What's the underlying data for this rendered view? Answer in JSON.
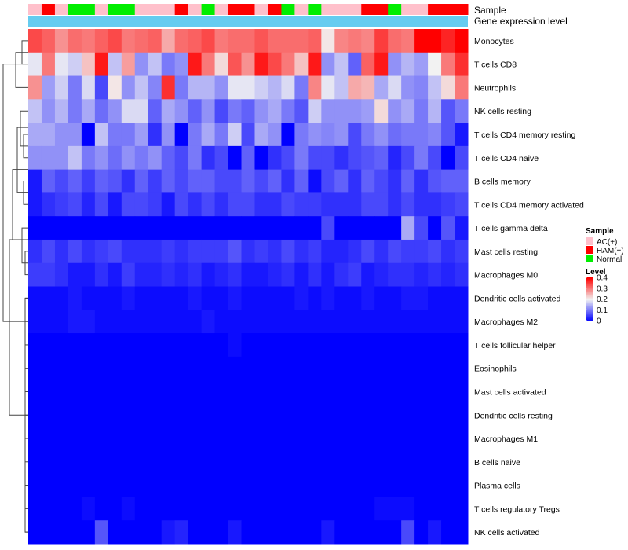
{
  "chart_data": {
    "type": "heatmap",
    "annotation_rows": [
      "Sample",
      "Gene expression level"
    ],
    "sample_groups": [
      "AC(+)",
      "HAM(+)",
      "AC(+)",
      "Normal",
      "Normal",
      "AC(+)",
      "Normal",
      "Normal",
      "AC(+)",
      "AC(+)",
      "AC(+)",
      "HAM(+)",
      "AC(+)",
      "Normal",
      "AC(+)",
      "HAM(+)",
      "HAM(+)",
      "AC(+)",
      "HAM(+)",
      "Normal",
      "AC(+)",
      "Normal",
      "AC(+)",
      "AC(+)",
      "AC(+)",
      "HAM(+)",
      "HAM(+)",
      "Normal",
      "AC(+)",
      "AC(+)",
      "HAM(+)",
      "HAM(+)",
      "HAM(+)"
    ],
    "row_labels": [
      "Monocytes",
      "T cells CD8",
      "Neutrophils",
      "NK cells resting",
      "T cells CD4 memory resting",
      "T cells CD4 naive",
      "B cells memory",
      "T cells CD4 memory activated",
      "T cells gamma delta",
      "Mast cells resting",
      "Macrophages M0",
      "Dendritic cells activated",
      "Macrophages M2",
      "T cells follicular helper",
      "Eosinophils",
      "Mast cells activated",
      "Dendritic cells resting",
      "Macrophages M1",
      "B cells naive",
      "Plasma cells",
      "T cells regulatory  Tregs",
      "NK cells activated"
    ],
    "values": [
      [
        0.34,
        0.32,
        0.28,
        0.31,
        0.3,
        0.32,
        0.34,
        0.3,
        0.31,
        0.32,
        0.26,
        0.31,
        0.32,
        0.34,
        0.3,
        0.31,
        0.31,
        0.33,
        0.31,
        0.31,
        0.31,
        0.32,
        0.21,
        0.29,
        0.3,
        0.29,
        0.35,
        0.31,
        0.3,
        0.4,
        0.4,
        0.37,
        0.4
      ],
      [
        0.19,
        0.3,
        0.19,
        0.17,
        0.24,
        0.38,
        0.16,
        0.27,
        0.12,
        0.16,
        0.1,
        0.12,
        0.38,
        0.3,
        0.22,
        0.33,
        0.28,
        0.38,
        0.34,
        0.3,
        0.24,
        0.38,
        0.12,
        0.16,
        0.08,
        0.32,
        0.38,
        0.12,
        0.15,
        0.13,
        0.2,
        0.3,
        0.36
      ],
      [
        0.28,
        0.13,
        0.17,
        0.1,
        0.18,
        0.06,
        0.21,
        0.12,
        0.16,
        0.11,
        0.36,
        0.1,
        0.15,
        0.15,
        0.12,
        0.19,
        0.19,
        0.17,
        0.15,
        0.18,
        0.1,
        0.29,
        0.19,
        0.16,
        0.26,
        0.25,
        0.14,
        0.18,
        0.12,
        0.11,
        0.16,
        0.22,
        0.3
      ],
      [
        0.16,
        0.12,
        0.15,
        0.1,
        0.14,
        0.09,
        0.12,
        0.18,
        0.18,
        0.08,
        0.14,
        0.12,
        0.08,
        0.12,
        0.06,
        0.1,
        0.08,
        0.12,
        0.14,
        0.1,
        0.07,
        0.17,
        0.12,
        0.12,
        0.12,
        0.13,
        0.22,
        0.12,
        0.14,
        0.1,
        0.15,
        0.07,
        0.1
      ],
      [
        0.14,
        0.14,
        0.12,
        0.12,
        0.0,
        0.16,
        0.1,
        0.1,
        0.13,
        0.04,
        0.12,
        0.0,
        0.1,
        0.14,
        0.1,
        0.17,
        0.06,
        0.14,
        0.12,
        0.0,
        0.1,
        0.12,
        0.11,
        0.12,
        0.06,
        0.1,
        0.12,
        0.09,
        0.1,
        0.1,
        0.11,
        0.07,
        0.02
      ],
      [
        0.12,
        0.12,
        0.12,
        0.16,
        0.1,
        0.12,
        0.09,
        0.12,
        0.1,
        0.12,
        0.08,
        0.06,
        0.1,
        0.04,
        0.06,
        0.0,
        0.08,
        0.0,
        0.04,
        0.06,
        0.1,
        0.06,
        0.06,
        0.04,
        0.06,
        0.07,
        0.08,
        0.03,
        0.06,
        0.1,
        0.06,
        0.0,
        0.06
      ],
      [
        0.02,
        0.08,
        0.06,
        0.08,
        0.05,
        0.08,
        0.07,
        0.04,
        0.08,
        0.05,
        0.08,
        0.06,
        0.08,
        0.08,
        0.06,
        0.06,
        0.08,
        0.06,
        0.08,
        0.04,
        0.08,
        0.01,
        0.06,
        0.08,
        0.04,
        0.08,
        0.06,
        0.04,
        0.08,
        0.04,
        0.07,
        0.08,
        0.08
      ],
      [
        0.02,
        0.04,
        0.05,
        0.06,
        0.03,
        0.06,
        0.02,
        0.06,
        0.06,
        0.05,
        0.02,
        0.06,
        0.04,
        0.06,
        0.04,
        0.06,
        0.06,
        0.04,
        0.04,
        0.06,
        0.05,
        0.05,
        0.04,
        0.04,
        0.04,
        0.06,
        0.06,
        0.04,
        0.06,
        0.04,
        0.04,
        0.05,
        0.06
      ],
      [
        0.0,
        0.0,
        0.0,
        0.0,
        0.0,
        0.0,
        0.0,
        0.0,
        0.0,
        0.0,
        0.0,
        0.0,
        0.0,
        0.0,
        0.0,
        0.0,
        0.0,
        0.0,
        0.0,
        0.0,
        0.0,
        0.0,
        0.06,
        0.0,
        0.0,
        0.0,
        0.0,
        0.0,
        0.14,
        0.06,
        0.0,
        0.07,
        0.02
      ],
      [
        0.04,
        0.06,
        0.04,
        0.06,
        0.04,
        0.05,
        0.06,
        0.04,
        0.04,
        0.04,
        0.05,
        0.04,
        0.05,
        0.05,
        0.05,
        0.07,
        0.04,
        0.05,
        0.04,
        0.06,
        0.04,
        0.05,
        0.03,
        0.03,
        0.04,
        0.06,
        0.04,
        0.06,
        0.05,
        0.05,
        0.06,
        0.04,
        0.05
      ],
      [
        0.05,
        0.05,
        0.04,
        0.02,
        0.02,
        0.04,
        0.02,
        0.05,
        0.03,
        0.03,
        0.04,
        0.03,
        0.04,
        0.02,
        0.03,
        0.04,
        0.02,
        0.02,
        0.03,
        0.04,
        0.02,
        0.04,
        0.02,
        0.04,
        0.05,
        0.02,
        0.03,
        0.04,
        0.04,
        0.03,
        0.04,
        0.03,
        0.04
      ],
      [
        0.01,
        0.01,
        0.01,
        0.02,
        0.01,
        0.01,
        0.01,
        0.02,
        0.01,
        0.01,
        0.01,
        0.01,
        0.02,
        0.01,
        0.01,
        0.02,
        0.01,
        0.01,
        0.01,
        0.01,
        0.02,
        0.01,
        0.02,
        0.01,
        0.01,
        0.02,
        0.01,
        0.01,
        0.02,
        0.02,
        0.01,
        0.01,
        0.01
      ],
      [
        0.01,
        0.01,
        0.01,
        0.02,
        0.02,
        0.01,
        0.01,
        0.01,
        0.01,
        0.01,
        0.01,
        0.01,
        0.01,
        0.02,
        0.01,
        0.01,
        0.01,
        0.01,
        0.01,
        0.01,
        0.01,
        0.01,
        0.01,
        0.01,
        0.01,
        0.01,
        0.01,
        0.01,
        0.01,
        0.01,
        0.01,
        0.01,
        0.01
      ],
      [
        0.0,
        0.0,
        0.0,
        0.0,
        0.0,
        0.0,
        0.0,
        0.0,
        0.0,
        0.0,
        0.0,
        0.0,
        0.0,
        0.0,
        0.0,
        0.01,
        0.0,
        0.0,
        0.0,
        0.0,
        0.0,
        0.0,
        0.0,
        0.0,
        0.0,
        0.0,
        0.0,
        0.0,
        0.0,
        0.0,
        0.0,
        0.0,
        0.0
      ],
      [
        0.0,
        0.0,
        0.0,
        0.0,
        0.0,
        0.0,
        0.0,
        0.0,
        0.0,
        0.0,
        0.0,
        0.0,
        0.0,
        0.0,
        0.0,
        0.0,
        0.0,
        0.0,
        0.0,
        0.0,
        0.0,
        0.0,
        0.0,
        0.0,
        0.0,
        0.0,
        0.0,
        0.0,
        0.0,
        0.0,
        0.0,
        0.0,
        0.0
      ],
      [
        0.0,
        0.0,
        0.0,
        0.0,
        0.0,
        0.0,
        0.0,
        0.0,
        0.0,
        0.0,
        0.0,
        0.0,
        0.0,
        0.0,
        0.0,
        0.0,
        0.0,
        0.0,
        0.0,
        0.0,
        0.0,
        0.0,
        0.0,
        0.0,
        0.0,
        0.0,
        0.0,
        0.0,
        0.0,
        0.0,
        0.0,
        0.0,
        0.0
      ],
      [
        0.0,
        0.0,
        0.0,
        0.0,
        0.0,
        0.0,
        0.0,
        0.0,
        0.0,
        0.0,
        0.0,
        0.0,
        0.0,
        0.0,
        0.0,
        0.0,
        0.0,
        0.0,
        0.0,
        0.0,
        0.0,
        0.0,
        0.0,
        0.0,
        0.0,
        0.0,
        0.0,
        0.0,
        0.0,
        0.0,
        0.0,
        0.0,
        0.0
      ],
      [
        0.0,
        0.0,
        0.0,
        0.0,
        0.0,
        0.0,
        0.0,
        0.0,
        0.0,
        0.0,
        0.0,
        0.0,
        0.0,
        0.0,
        0.0,
        0.0,
        0.0,
        0.0,
        0.0,
        0.0,
        0.0,
        0.0,
        0.0,
        0.0,
        0.0,
        0.0,
        0.0,
        0.0,
        0.0,
        0.0,
        0.0,
        0.0,
        0.0
      ],
      [
        0.0,
        0.0,
        0.0,
        0.0,
        0.0,
        0.0,
        0.0,
        0.0,
        0.0,
        0.0,
        0.0,
        0.0,
        0.0,
        0.0,
        0.0,
        0.0,
        0.0,
        0.0,
        0.0,
        0.0,
        0.0,
        0.0,
        0.0,
        0.0,
        0.0,
        0.0,
        0.0,
        0.0,
        0.0,
        0.0,
        0.0,
        0.0,
        0.0
      ],
      [
        0.0,
        0.0,
        0.0,
        0.0,
        0.0,
        0.0,
        0.0,
        0.0,
        0.0,
        0.0,
        0.0,
        0.0,
        0.0,
        0.0,
        0.0,
        0.0,
        0.0,
        0.0,
        0.0,
        0.0,
        0.0,
        0.0,
        0.0,
        0.0,
        0.0,
        0.0,
        0.0,
        0.0,
        0.0,
        0.0,
        0.0,
        0.0,
        0.0
      ],
      [
        0.0,
        0.0,
        0.0,
        0.0,
        0.01,
        0.0,
        0.0,
        0.01,
        0.0,
        0.0,
        0.0,
        0.0,
        0.0,
        0.0,
        0.0,
        0.0,
        0.0,
        0.0,
        0.0,
        0.0,
        0.0,
        0.0,
        0.0,
        0.0,
        0.0,
        0.0,
        0.01,
        0.01,
        0.01,
        0.0,
        0.0,
        0.0,
        0.0
      ],
      [
        0.0,
        0.0,
        0.0,
        0.0,
        0.0,
        0.07,
        0.0,
        0.0,
        0.0,
        0.0,
        0.02,
        0.03,
        0.0,
        0.0,
        0.0,
        0.02,
        0.0,
        0.0,
        0.0,
        0.0,
        0.0,
        0.0,
        0.02,
        0.0,
        0.0,
        0.0,
        0.0,
        0.0,
        0.06,
        0.0,
        0.02,
        0.0,
        0.0
      ]
    ],
    "color_scale": {
      "min": 0,
      "mid": 0.2,
      "max": 0.4,
      "low_color": "#0000ff",
      "mid_color": "#f2f2f2",
      "high_color": "#ff0000"
    },
    "legend": {
      "sample_title": "Sample",
      "sample_entries": [
        {
          "label": "AC(+)",
          "color": "#ffc0cb"
        },
        {
          "label": "HAM(+)",
          "color": "#ff0000"
        },
        {
          "label": "Normal",
          "color": "#00ee00"
        }
      ],
      "level_title": "Level",
      "level_ticks": [
        "0.4",
        "0.3",
        "0.2",
        "0.1",
        "0"
      ],
      "level_tick_values": [
        0.4,
        0.3,
        0.2,
        0.1,
        0
      ]
    },
    "gene_expression_color": "#66ccf0",
    "row_dendrogram": "shown",
    "legend_position": "right"
  }
}
